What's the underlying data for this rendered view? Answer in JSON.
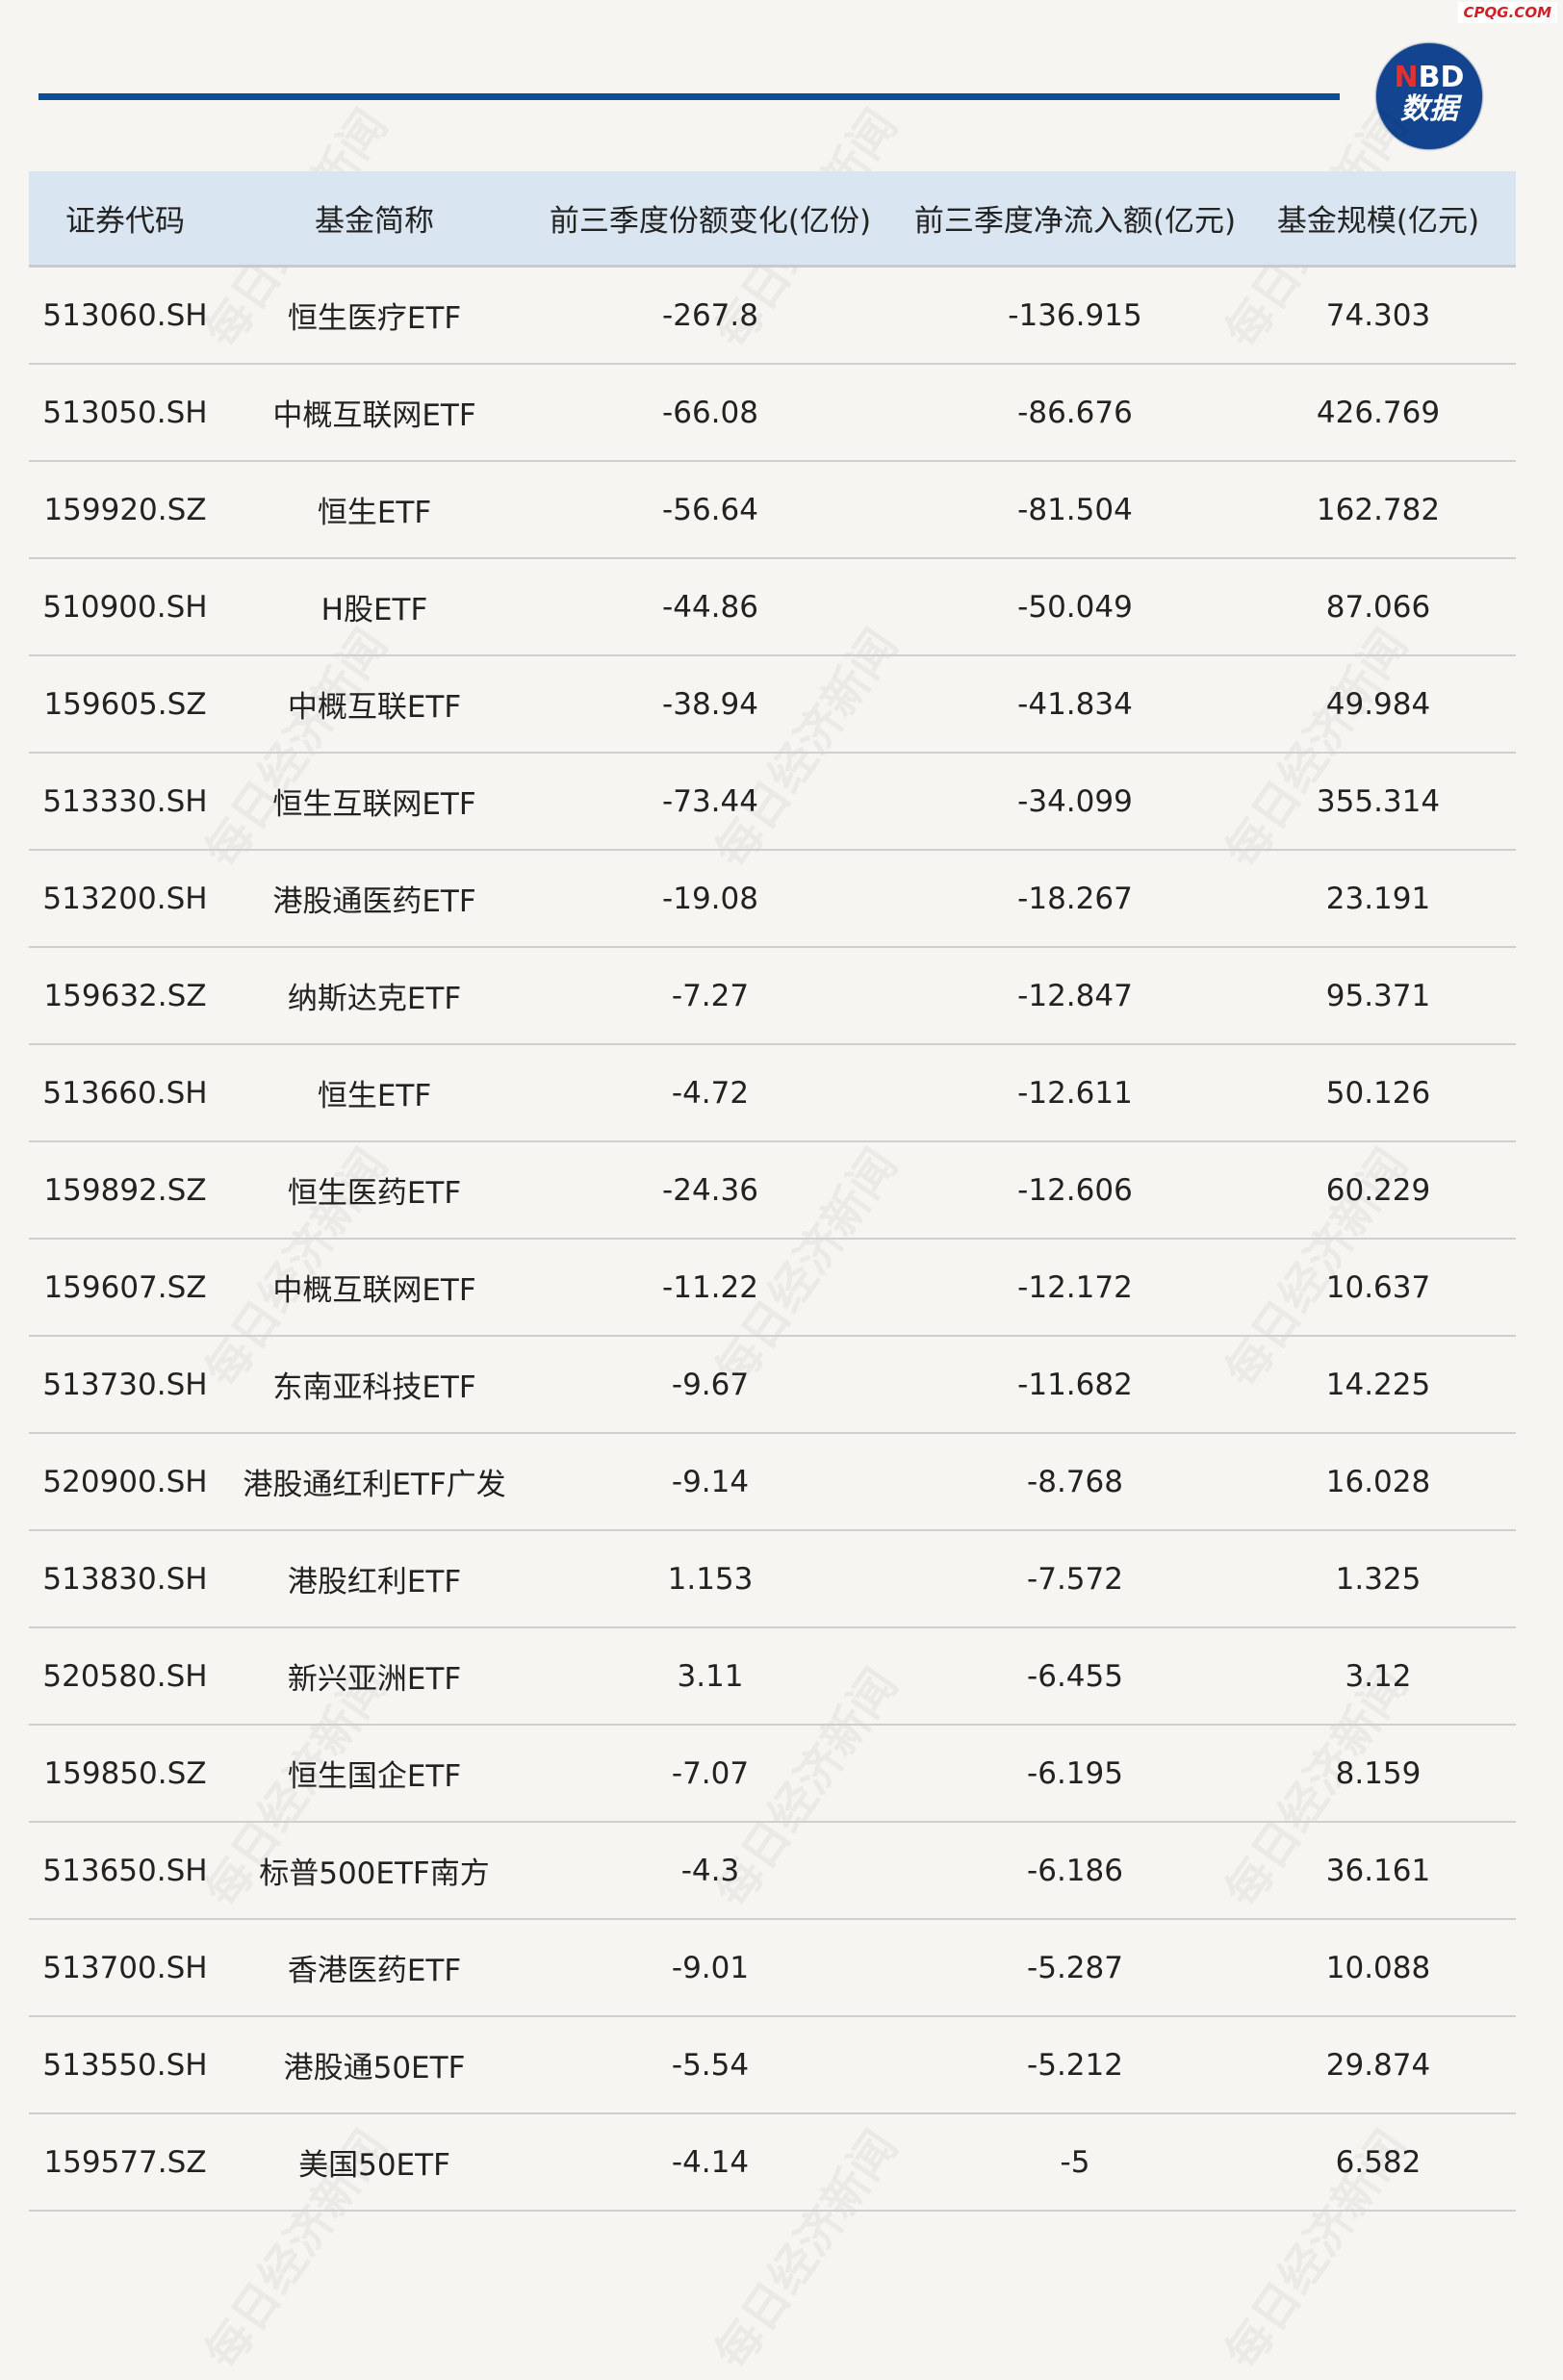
{
  "source_mark": "CPQG.COM",
  "logo": {
    "line1_accent": "N",
    "line1": "BD",
    "line2": "数据"
  },
  "watermark": "每日经济新闻",
  "colors": {
    "accent": "#0f4c9a",
    "header_bg": "#d9e6f1",
    "background": "#f7f5f1"
  },
  "table": {
    "headers": [
      "证券代码",
      "基金简称",
      "前三季度份额变化(亿份)",
      "前三季度净流入额(亿元)",
      "基金规模(亿元)"
    ],
    "rows": [
      [
        "513060.SH",
        "恒生医疗ETF",
        "-267.8",
        "-136.915",
        "74.303"
      ],
      [
        "513050.SH",
        "中概互联网ETF",
        "-66.08",
        "-86.676",
        "426.769"
      ],
      [
        "159920.SZ",
        "恒生ETF",
        "-56.64",
        "-81.504",
        "162.782"
      ],
      [
        "510900.SH",
        "H股ETF",
        "-44.86",
        "-50.049",
        "87.066"
      ],
      [
        "159605.SZ",
        "中概互联ETF",
        "-38.94",
        "-41.834",
        "49.984"
      ],
      [
        "513330.SH",
        "恒生互联网ETF",
        "-73.44",
        "-34.099",
        "355.314"
      ],
      [
        "513200.SH",
        "港股通医药ETF",
        "-19.08",
        "-18.267",
        "23.191"
      ],
      [
        "159632.SZ",
        "纳斯达克ETF",
        "-7.27",
        "-12.847",
        "95.371"
      ],
      [
        "513660.SH",
        "恒生ETF",
        "-4.72",
        "-12.611",
        "50.126"
      ],
      [
        "159892.SZ",
        "恒生医药ETF",
        "-24.36",
        "-12.606",
        "60.229"
      ],
      [
        "159607.SZ",
        "中概互联网ETF",
        "-11.22",
        "-12.172",
        "10.637"
      ],
      [
        "513730.SH",
        "东南亚科技ETF",
        "-9.67",
        "-11.682",
        "14.225"
      ],
      [
        "520900.SH",
        "港股通红利ETF广发",
        "-9.14",
        "-8.768",
        "16.028"
      ],
      [
        "513830.SH",
        "港股红利ETF",
        "1.153",
        "-7.572",
        "1.325"
      ],
      [
        "520580.SH",
        "新兴亚洲ETF",
        "3.11",
        "-6.455",
        "3.12"
      ],
      [
        "159850.SZ",
        "恒生国企ETF",
        "-7.07",
        "-6.195",
        "8.159"
      ],
      [
        "513650.SH",
        "标普500ETF南方",
        "-4.3",
        "-6.186",
        "36.161"
      ],
      [
        "513700.SH",
        "香港医药ETF",
        "-9.01",
        "-5.287",
        "10.088"
      ],
      [
        "513550.SH",
        "港股通50ETF",
        "-5.54",
        "-5.212",
        "29.874"
      ],
      [
        "159577.SZ",
        "美国50ETF",
        "-4.14",
        "-5",
        "6.582"
      ]
    ]
  }
}
